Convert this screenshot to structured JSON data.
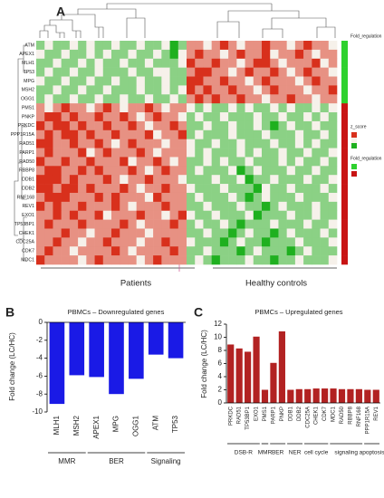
{
  "chart_data": [
    {
      "type": "heatmap",
      "panel": "A",
      "rows": [
        "ATM",
        "APEX1",
        "MLH1",
        "TP53",
        "MPG",
        "MSH2",
        "OGG1",
        "PMS1",
        "PNKP",
        "PRKDC",
        "PPP1R15A",
        "RAD51",
        "PARP1",
        "RAD50",
        "RBBP8",
        "DDB1",
        "DDB2",
        "RNF168",
        "REV1",
        "EXO1",
        "TP53BP1",
        "CHEK1",
        "CDC25A",
        "CDK7",
        "MDC1"
      ],
      "values": [
        [
          -1,
          0,
          -1,
          -1,
          0,
          -1,
          0,
          -1,
          -1,
          0,
          -1,
          -1,
          0,
          -1,
          -1,
          0,
          -2,
          -1,
          1,
          1,
          0,
          1,
          2,
          1,
          0,
          1,
          1,
          2,
          1,
          1,
          0,
          1,
          2,
          1,
          1,
          0
        ],
        [
          0,
          -1,
          -1,
          0,
          -1,
          -1,
          0,
          -1,
          0,
          -1,
          -1,
          0,
          -1,
          -1,
          0,
          -1,
          -2,
          0,
          1,
          2,
          1,
          1,
          0,
          1,
          2,
          1,
          1,
          2,
          0,
          1,
          1,
          2,
          1,
          0,
          1,
          1
        ],
        [
          -1,
          -1,
          0,
          -1,
          -1,
          0,
          -1,
          0,
          -1,
          -1,
          0,
          -1,
          -1,
          0,
          -1,
          -1,
          -1,
          0,
          2,
          1,
          1,
          2,
          1,
          1,
          0,
          1,
          2,
          2,
          1,
          0,
          1,
          1,
          1,
          2,
          0,
          1
        ],
        [
          -1,
          0,
          -1,
          -1,
          0,
          -1,
          -1,
          0,
          -1,
          -1,
          -1,
          0,
          -1,
          -1,
          0,
          0,
          -1,
          -1,
          1,
          2,
          2,
          1,
          1,
          0,
          1,
          2,
          1,
          1,
          2,
          1,
          0,
          1,
          2,
          1,
          1,
          0
        ],
        [
          0,
          -1,
          -1,
          0,
          -1,
          -1,
          0,
          -1,
          -1,
          0,
          -1,
          -1,
          0,
          -1,
          -1,
          0,
          -1,
          -1,
          2,
          2,
          1,
          1,
          2,
          1,
          1,
          0,
          1,
          2,
          1,
          1,
          1,
          0,
          1,
          2,
          1,
          1
        ],
        [
          -1,
          -1,
          0,
          -1,
          -1,
          0,
          -1,
          -1,
          0,
          -1,
          -1,
          -1,
          0,
          -1,
          -1,
          0,
          -1,
          0,
          2,
          1,
          2,
          1,
          1,
          2,
          1,
          1,
          0,
          1,
          2,
          1,
          1,
          1,
          0,
          1,
          1,
          2
        ],
        [
          -1,
          0,
          -1,
          -1,
          0,
          -1,
          -1,
          0,
          -1,
          -1,
          0,
          -1,
          -1,
          0,
          -1,
          -1,
          0,
          -1,
          1,
          2,
          1,
          2,
          1,
          1,
          2,
          1,
          1,
          0,
          1,
          1,
          2,
          1,
          1,
          0,
          1,
          1
        ],
        [
          1,
          0,
          1,
          2,
          1,
          1,
          0,
          1,
          2,
          1,
          0,
          1,
          1,
          2,
          1,
          0,
          1,
          1,
          0,
          -1,
          0,
          -1,
          -1,
          0,
          -1,
          0,
          -1,
          -1,
          0,
          -1,
          0,
          -1,
          -1,
          0,
          -1,
          0
        ],
        [
          1,
          2,
          2,
          1,
          2,
          1,
          1,
          2,
          1,
          1,
          2,
          1,
          0,
          1,
          2,
          1,
          1,
          0,
          -1,
          0,
          -1,
          -1,
          0,
          -1,
          -1,
          -1,
          0,
          -1,
          -1,
          0,
          -1,
          -1,
          0,
          -1,
          0,
          -1
        ],
        [
          2,
          1,
          2,
          2,
          1,
          2,
          1,
          1,
          2,
          1,
          1,
          2,
          1,
          0,
          1,
          1,
          2,
          1,
          -1,
          -1,
          0,
          -1,
          -1,
          0,
          -1,
          -1,
          0,
          -1,
          -2,
          -1,
          0,
          -1,
          -1,
          0,
          -1,
          -1
        ],
        [
          1,
          2,
          1,
          2,
          2,
          1,
          2,
          1,
          1,
          2,
          1,
          1,
          1,
          2,
          0,
          1,
          1,
          2,
          -1,
          0,
          -1,
          -1,
          -1,
          0,
          -1,
          -1,
          -1,
          0,
          -1,
          -1,
          -1,
          0,
          -1,
          -1,
          0,
          -1
        ],
        [
          2,
          2,
          1,
          1,
          2,
          1,
          1,
          2,
          1,
          0,
          1,
          2,
          1,
          1,
          1,
          0,
          1,
          1,
          0,
          -1,
          -1,
          0,
          -1,
          -1,
          0,
          -1,
          -1,
          -1,
          0,
          -1,
          -1,
          0,
          -1,
          0,
          -1,
          -1
        ],
        [
          1,
          2,
          1,
          1,
          1,
          2,
          0,
          1,
          2,
          1,
          1,
          1,
          2,
          1,
          0,
          1,
          1,
          1,
          0,
          -1,
          0,
          -1,
          -1,
          -1,
          0,
          -1,
          0,
          -1,
          -1,
          0,
          -1,
          -1,
          0,
          -1,
          -1,
          0
        ],
        [
          2,
          1,
          1,
          2,
          1,
          1,
          2,
          1,
          1,
          1,
          2,
          0,
          1,
          1,
          2,
          1,
          0,
          1,
          -1,
          -1,
          0,
          -1,
          0,
          -1,
          -1,
          0,
          -1,
          -1,
          -1,
          0,
          -1,
          0,
          -1,
          -1,
          0,
          -1
        ],
        [
          1,
          2,
          2,
          1,
          1,
          2,
          1,
          2,
          1,
          1,
          1,
          2,
          1,
          0,
          1,
          2,
          1,
          1,
          -1,
          0,
          -1,
          -1,
          -1,
          0,
          -2,
          -1,
          0,
          -1,
          -1,
          -1,
          0,
          -1,
          -1,
          0,
          -1,
          -1
        ],
        [
          2,
          2,
          2,
          1,
          2,
          1,
          1,
          1,
          2,
          1,
          0,
          1,
          1,
          2,
          1,
          1,
          1,
          0,
          -1,
          -1,
          -1,
          0,
          -1,
          -1,
          0,
          -2,
          -1,
          -1,
          0,
          -1,
          -1,
          -1,
          0,
          -1,
          -1,
          0
        ],
        [
          2,
          2,
          1,
          2,
          2,
          1,
          2,
          1,
          1,
          1,
          2,
          1,
          0,
          1,
          1,
          2,
          1,
          1,
          0,
          -1,
          -1,
          -1,
          0,
          -1,
          -1,
          -1,
          -2,
          0,
          -1,
          -1,
          0,
          -1,
          -1,
          -1,
          0,
          -1
        ],
        [
          1,
          2,
          2,
          2,
          1,
          1,
          1,
          2,
          1,
          2,
          1,
          1,
          1,
          0,
          2,
          1,
          1,
          1,
          -1,
          0,
          -1,
          -1,
          -1,
          0,
          -1,
          -2,
          -1,
          0,
          -1,
          -1,
          -1,
          0,
          -1,
          -1,
          -1,
          0
        ],
        [
          2,
          1,
          2,
          1,
          1,
          2,
          1,
          1,
          1,
          2,
          1,
          0,
          1,
          1,
          1,
          2,
          1,
          1,
          -1,
          -1,
          0,
          -1,
          -1,
          -1,
          0,
          -1,
          -1,
          -2,
          -1,
          0,
          -1,
          -1,
          -1,
          0,
          -1,
          -1
        ],
        [
          1,
          1,
          2,
          1,
          2,
          1,
          1,
          2,
          0,
          1,
          1,
          1,
          2,
          1,
          1,
          0,
          1,
          2,
          0,
          -1,
          -1,
          0,
          -1,
          -1,
          -1,
          0,
          -2,
          -1,
          -1,
          -1,
          0,
          -1,
          -1,
          0,
          -1,
          -1
        ],
        [
          1,
          2,
          1,
          1,
          1,
          2,
          1,
          1,
          1,
          1,
          2,
          1,
          0,
          1,
          1,
          1,
          2,
          1,
          -1,
          0,
          -1,
          -1,
          0,
          -1,
          -2,
          -1,
          -1,
          -1,
          0,
          -1,
          -1,
          -1,
          0,
          -1,
          -1,
          0
        ],
        [
          1,
          1,
          1,
          2,
          1,
          1,
          0,
          1,
          1,
          2,
          1,
          1,
          1,
          0,
          1,
          1,
          1,
          1,
          -1,
          -1,
          0,
          -1,
          -1,
          -2,
          -1,
          0,
          -1,
          -1,
          -2,
          -1,
          0,
          -1,
          -1,
          -1,
          0,
          -1
        ],
        [
          1,
          1,
          2,
          1,
          1,
          0,
          1,
          1,
          2,
          1,
          1,
          1,
          0,
          1,
          1,
          2,
          1,
          1,
          0,
          -1,
          -1,
          -1,
          -2,
          -1,
          0,
          -1,
          -1,
          -2,
          -1,
          -1,
          -1,
          0,
          -1,
          -1,
          -1,
          0
        ],
        [
          1,
          2,
          1,
          1,
          0,
          1,
          1,
          1,
          1,
          2,
          1,
          0,
          1,
          1,
          1,
          1,
          2,
          1,
          -1,
          -1,
          0,
          -1,
          -1,
          -1,
          -2,
          -1,
          0,
          -1,
          -1,
          -1,
          -2,
          -1,
          0,
          -1,
          -1,
          -1
        ],
        [
          2,
          1,
          1,
          1,
          1,
          0,
          1,
          2,
          1,
          1,
          1,
          1,
          0,
          1,
          2,
          1,
          1,
          1,
          -1,
          0,
          -1,
          -2,
          -1,
          -1,
          -1,
          0,
          -1,
          -1,
          -2,
          -1,
          -1,
          0,
          -1,
          -1,
          -1,
          0
        ]
      ],
      "zlim": [
        -2,
        2
      ],
      "colors": [
        "#1fb01f",
        "#f6f1ea",
        "#d8301c"
      ],
      "row_regulation": [
        "down",
        "down",
        "down",
        "down",
        "down",
        "down",
        "down",
        "up",
        "up",
        "up",
        "up",
        "up",
        "up",
        "up",
        "up",
        "up",
        "up",
        "up",
        "up",
        "up",
        "up",
        "up",
        "up",
        "up",
        "up"
      ],
      "regulation_colors": {
        "down": "#2ed12e",
        "up": "#c81414"
      },
      "legend_titles": [
        "Fold_regulation",
        "z_score",
        "Fold_regulation"
      ],
      "group_labels": [
        "Patients",
        "Healthy controls"
      ]
    },
    {
      "type": "bar",
      "panel": "B",
      "title": "PBMCs – Downregulated genes",
      "ylabel": "Fold change (LC/HC)",
      "categories": [
        "MLH1",
        "MSH2",
        "APEX1",
        "MPG",
        "OGG1",
        "ATM",
        "TP53"
      ],
      "values": [
        -9.1,
        -5.9,
        -6.1,
        -8.0,
        -6.3,
        -3.6,
        -4.0
      ],
      "color": "#1a1ae6",
      "label_colors": [
        "#1f9a3a",
        "#1f6f3a",
        "#c0392b",
        "#1f9a3a",
        "#1f9a3a",
        "#1f9a3a",
        "#c0392b"
      ],
      "groups": [
        {
          "name": "MMR",
          "categories": [
            "MLH1",
            "MSH2"
          ]
        },
        {
          "name": "BER",
          "categories": [
            "APEX1",
            "MPG",
            "OGG1"
          ]
        },
        {
          "name": "Signaling",
          "categories": [
            "ATM",
            "TP53"
          ]
        }
      ],
      "ylim": [
        -10,
        0
      ],
      "yticks": [
        0,
        -2,
        -4,
        -6,
        -8,
        -10
      ]
    },
    {
      "type": "bar",
      "panel": "C",
      "title": "PBMCs – Upregulated genes",
      "ylabel": "Fold change (LC/HC)",
      "categories": [
        "PRKDC",
        "RAD51",
        "TP53BP1",
        "EXO1",
        "PMS1",
        "PARP1",
        "PNKP",
        "DDB1",
        "DDB2",
        "CDC25A",
        "CHEK1",
        "CDK7",
        "MDC1",
        "RAD50",
        "RBBP8",
        "RNF168",
        "PPP1R15A",
        "REV1"
      ],
      "values": [
        8.9,
        8.3,
        7.8,
        10.1,
        2.0,
        6.1,
        10.9,
        2.0,
        2.1,
        2.1,
        2.2,
        2.2,
        2.2,
        2.1,
        2.1,
        2.1,
        2.0,
        2.0
      ],
      "color": "#b22222",
      "groups": [
        {
          "name": "DSB-R",
          "categories": [
            "PRKDC",
            "RAD51",
            "TP53BP1",
            "EXO1"
          ]
        },
        {
          "name": "MMR",
          "categories": [
            "PMS1"
          ]
        },
        {
          "name": "BER",
          "categories": [
            "PARP1",
            "PNKP"
          ]
        },
        {
          "name": "NER",
          "categories": [
            "DDB1",
            "DDB2"
          ]
        },
        {
          "name": "cell cycle",
          "categories": [
            "CDC25A",
            "CHEK1",
            "CDK7"
          ]
        },
        {
          "name": "signaling",
          "categories": [
            "MDC1",
            "RAD50",
            "RBBP8",
            "RNF168"
          ]
        },
        {
          "name": "apoptosis",
          "categories": [
            "PPP1R15A",
            "REV1"
          ]
        }
      ],
      "ylim": [
        0,
        12
      ],
      "yticks": [
        0,
        2,
        4,
        6,
        8,
        10,
        12
      ]
    }
  ]
}
